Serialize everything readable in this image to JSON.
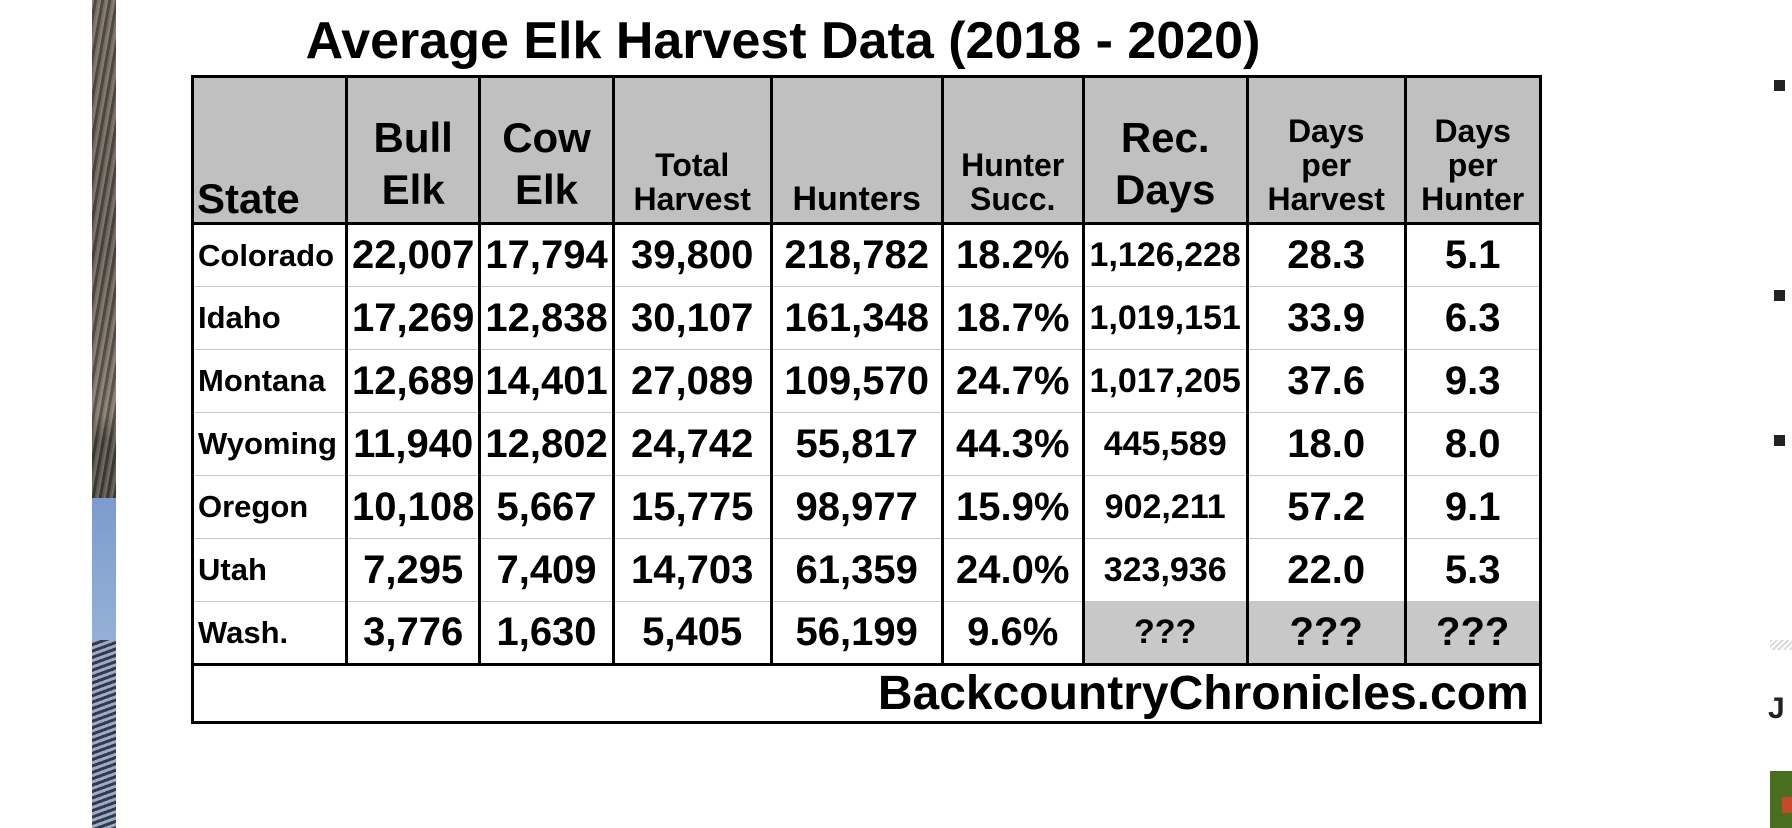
{
  "chart_data": {
    "type": "table",
    "title": "Average Elk Harvest Data (2018 - 2020)",
    "columns": [
      {
        "lines": [
          "State"
        ]
      },
      {
        "lines": [
          "Bull",
          "Elk"
        ]
      },
      {
        "lines": [
          "Cow",
          "Elk"
        ]
      },
      {
        "lines": [
          "Total",
          "Harvest"
        ]
      },
      {
        "lines": [
          "Hunters"
        ]
      },
      {
        "lines": [
          "Hunter",
          "Succ."
        ]
      },
      {
        "lines": [
          "Rec.",
          "Days"
        ]
      },
      {
        "lines": [
          "Days",
          "per",
          "Harvest"
        ]
      },
      {
        "lines": [
          "Days",
          "per",
          "Hunter"
        ]
      }
    ],
    "rows": [
      [
        "Colorado",
        "22,007",
        "17,794",
        "39,800",
        "218,782",
        "18.2%",
        "1,126,228",
        "28.3",
        "5.1"
      ],
      [
        "Idaho",
        "17,269",
        "12,838",
        "30,107",
        "161,348",
        "18.7%",
        "1,019,151",
        "33.9",
        "6.3"
      ],
      [
        "Montana",
        "12,689",
        "14,401",
        "27,089",
        "109,570",
        "24.7%",
        "1,017,205",
        "37.6",
        "9.3"
      ],
      [
        "Wyoming",
        "11,940",
        "12,802",
        "24,742",
        "55,817",
        "44.3%",
        "445,589",
        "18.0",
        "8.0"
      ],
      [
        "Oregon",
        "10,108",
        "5,667",
        "15,775",
        "98,977",
        "15.9%",
        "902,211",
        "57.2",
        "9.1"
      ],
      [
        "Utah",
        "7,295",
        "7,409",
        "14,703",
        "61,359",
        "24.0%",
        "323,936",
        "22.0",
        "5.3"
      ],
      [
        "Wash.",
        "3,776",
        "1,630",
        "5,405",
        "56,199",
        "9.6%",
        "???",
        "???",
        "???"
      ]
    ],
    "footer": "BackcountryChronicles.com",
    "header_color": "#c0c0c0",
    "unknown_cell_color": "#c8c8c8"
  },
  "sidebar": {
    "partial_letter": "J"
  }
}
